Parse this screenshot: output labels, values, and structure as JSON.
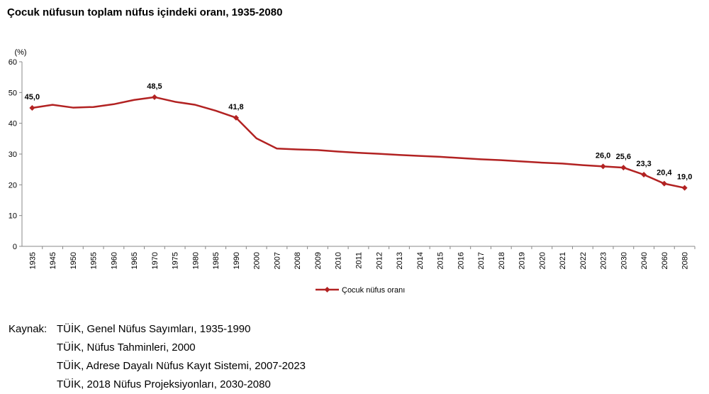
{
  "chart_data": {
    "type": "line",
    "title": "Çocuk nüfusun toplam nüfus içindeki oranı, 1935-2080",
    "ylabel": "(%)",
    "xlabel": "",
    "ylim": [
      0,
      60
    ],
    "yticks": [
      0,
      10,
      20,
      30,
      40,
      50,
      60
    ],
    "grid": false,
    "legend": "bottom",
    "color": "#B22222",
    "categories": [
      "1935",
      "1945",
      "1950",
      "1955",
      "1960",
      "1965",
      "1970",
      "1975",
      "1980",
      "1985",
      "1990",
      "2000",
      "2007",
      "2008",
      "2009",
      "2010",
      "2011",
      "2012",
      "2013",
      "2014",
      "2015",
      "2016",
      "2017",
      "2018",
      "2019",
      "2020",
      "2021",
      "2022",
      "2023",
      "2030",
      "2040",
      "2060",
      "2080"
    ],
    "series": [
      {
        "name": "Çocuk nüfus oranı",
        "values": [
          45.0,
          46.0,
          45.1,
          45.3,
          46.2,
          47.6,
          48.5,
          47.0,
          46.0,
          44.1,
          41.8,
          35.1,
          31.8,
          31.5,
          31.3,
          30.8,
          30.4,
          30.1,
          29.7,
          29.4,
          29.1,
          28.7,
          28.3,
          28.0,
          27.6,
          27.2,
          26.9,
          26.4,
          26.0,
          25.6,
          23.3,
          20.4,
          19.0
        ],
        "labeled_points": {
          "1935": "45,0",
          "1970": "48,5",
          "1990": "41,8",
          "2023": "26,0",
          "2030": "25,6",
          "2040": "23,3",
          "2060": "20,4",
          "2080": "19,0"
        }
      }
    ]
  },
  "source": {
    "prefix": "Kaynak:",
    "lines": [
      "TÜİK, Genel Nüfus Sayımları, 1935-1990",
      "TÜİK, Nüfus Tahminleri, 2000",
      "TÜİK, Adrese Dayalı Nüfus Kayıt Sistemi, 2007-2023",
      "TÜİK, 2018 Nüfus Projeksiyonları, 2030-2080"
    ]
  }
}
